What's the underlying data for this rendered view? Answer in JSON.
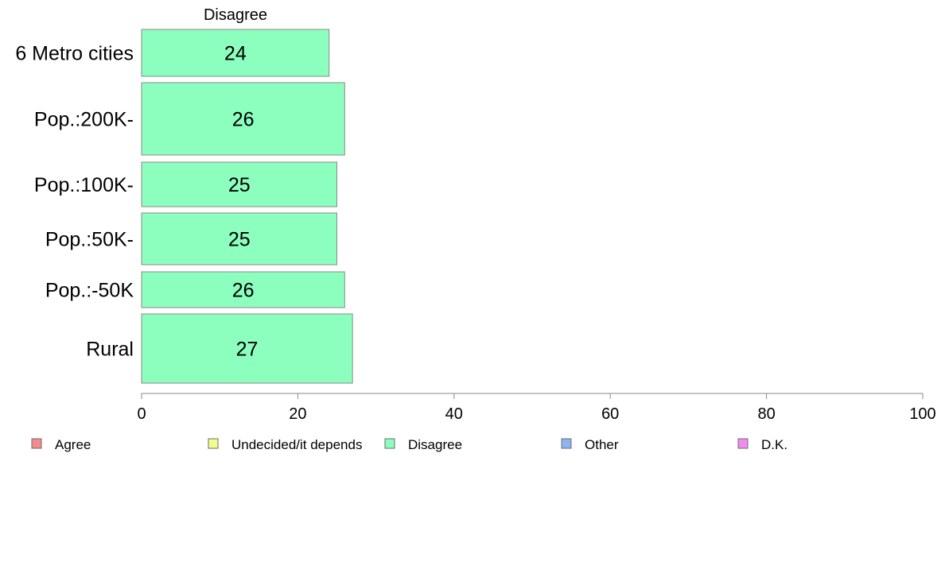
{
  "chart_data": {
    "type": "bar",
    "orientation": "horizontal",
    "panel_title": "Disagree",
    "categories": [
      "6 Metro cities",
      "Pop.:200K-",
      "Pop.:100K-",
      "Pop.:50K-",
      "Pop.:-50K",
      "Rural"
    ],
    "series": [
      {
        "name": "Disagree",
        "values": [
          24,
          26,
          25,
          25,
          26,
          27
        ],
        "color": "#8CFFBF"
      }
    ],
    "value_labels": [
      "24",
      "26",
      "25",
      "25",
      "26",
      "27"
    ],
    "xlim": [
      0,
      100
    ],
    "x_ticks": [
      0,
      20,
      40,
      60,
      80,
      100
    ],
    "x_tick_labels": [
      "0",
      "20",
      "40",
      "60",
      "80",
      "100"
    ],
    "grid": false,
    "legend_position": "bottom",
    "legend": [
      {
        "label": "Agree",
        "color": "#F28C8C"
      },
      {
        "label": "Undecided/it depends",
        "color": "#F0FF8C"
      },
      {
        "label": "Disagree",
        "color": "#8CFFBF"
      },
      {
        "label": "Other",
        "color": "#8CB4F0"
      },
      {
        "label": "D.K.",
        "color": "#F08CF0"
      }
    ]
  }
}
